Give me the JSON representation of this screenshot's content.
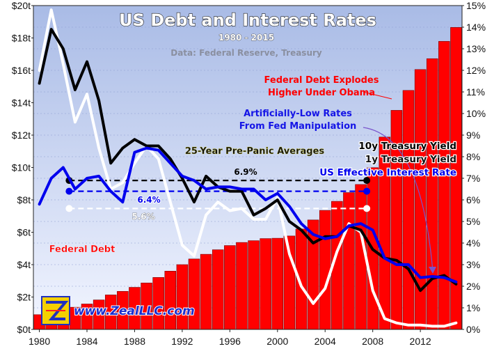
{
  "chart": {
    "title": "US Debt and Interest Rates",
    "subtitle": "1980 - 2015",
    "source": "Data: Federal Reserve, Treasury",
    "brand": "www.ZealLLC.com",
    "annotations": {
      "debt_explodes_line1": "Federal Debt Explodes",
      "debt_explodes_line2": "Higher Under Obama",
      "low_rates_line1": "Artificially-Low Rates",
      "low_rates_line2": "From Fed Manipulation",
      "averages_title": "25-Year Pre-Panic Averages",
      "federal_debt_label": "Federal Debt"
    },
    "legend": {
      "y10": "10y Treasury Yield",
      "y1": "1y Treasury Yield",
      "eff": "US Effective Interest Rate"
    },
    "colors": {
      "debt_bar": "#ff0000",
      "y10": "#000000",
      "y1": "#ffffff",
      "eff": "#0000ee",
      "red_text": "#ff0000",
      "blue_text": "#1515e6"
    }
  },
  "chart_data": {
    "type": "bar+line",
    "title": "US Debt and Interest Rates",
    "subtitle": "1980 - 2015",
    "x_ticks": [
      "1980",
      "1984",
      "1988",
      "1992",
      "1996",
      "2000",
      "2004",
      "2008",
      "2012"
    ],
    "left_axis": {
      "ylim": [
        0,
        20
      ],
      "ticks": [
        "$0t",
        "$2t",
        "$4t",
        "$6t",
        "$8t",
        "$10t",
        "$12t",
        "$14t",
        "$16t",
        "$18t",
        "$20t"
      ]
    },
    "right_axis": {
      "ylim": [
        0,
        15
      ],
      "ticks": [
        "0%",
        "1%",
        "2%",
        "3%",
        "4%",
        "5%",
        "6%",
        "7%",
        "8%",
        "9%",
        "10%",
        "11%",
        "12%",
        "13%",
        "14%",
        "15%"
      ]
    },
    "years": [
      1980,
      1981,
      1982,
      1983,
      1984,
      1985,
      1986,
      1987,
      1988,
      1989,
      1990,
      1991,
      1992,
      1993,
      1994,
      1995,
      1996,
      1997,
      1998,
      1999,
      2000,
      2001,
      2002,
      2003,
      2004,
      2005,
      2006,
      2007,
      2008,
      2009,
      2010,
      2011,
      2012,
      2013,
      2014,
      2015
    ],
    "series": [
      {
        "name": "Federal Debt",
        "axis": "left",
        "unit": "$t",
        "values": [
          0.91,
          1.0,
          1.14,
          1.37,
          1.57,
          1.82,
          2.13,
          2.35,
          2.6,
          2.87,
          3.21,
          3.6,
          4.0,
          4.35,
          4.64,
          4.92,
          5.18,
          5.37,
          5.48,
          5.61,
          5.63,
          5.77,
          6.2,
          6.76,
          7.35,
          7.91,
          8.45,
          8.95,
          9.99,
          11.88,
          13.53,
          14.76,
          16.05,
          16.72,
          17.79,
          18.65
        ]
      },
      {
        "name": "10y Treasury Yield",
        "axis": "right",
        "unit": "%",
        "values": [
          11.4,
          13.9,
          13.0,
          11.1,
          12.4,
          10.6,
          7.7,
          8.4,
          8.8,
          8.5,
          8.5,
          7.9,
          7.0,
          5.9,
          7.1,
          6.6,
          6.4,
          6.4,
          5.3,
          5.6,
          6.0,
          5.0,
          4.6,
          4.0,
          4.3,
          4.3,
          4.8,
          4.6,
          3.7,
          3.3,
          3.2,
          2.8,
          1.8,
          2.35,
          2.5,
          2.1
        ]
      },
      {
        "name": "1y Treasury Yield",
        "axis": "right",
        "unit": "%",
        "values": [
          12.0,
          14.8,
          12.3,
          9.6,
          10.9,
          8.4,
          6.5,
          6.8,
          7.7,
          8.5,
          7.9,
          5.9,
          3.9,
          3.4,
          5.3,
          5.9,
          5.5,
          5.6,
          5.1,
          5.1,
          6.1,
          3.5,
          2.0,
          1.2,
          1.9,
          3.6,
          4.9,
          4.5,
          1.8,
          0.5,
          0.3,
          0.2,
          0.2,
          0.15,
          0.15,
          0.3
        ]
      },
      {
        "name": "US Effective Interest Rate",
        "axis": "right",
        "unit": "%",
        "values": [
          5.8,
          7.0,
          7.5,
          6.5,
          7.0,
          7.1,
          6.4,
          5.9,
          8.2,
          8.4,
          8.3,
          7.7,
          7.1,
          6.9,
          6.5,
          6.6,
          6.6,
          6.5,
          6.5,
          6.0,
          6.3,
          5.7,
          4.9,
          4.4,
          4.2,
          4.3,
          4.8,
          4.9,
          4.6,
          3.3,
          3.0,
          3.0,
          2.4,
          2.45,
          2.4,
          2.2
        ]
      }
    ],
    "averages": [
      {
        "series": "10y Treasury Yield",
        "label": "6.9%",
        "value": 6.9
      },
      {
        "series": "US Effective Interest Rate",
        "label": "6.4%",
        "value": 6.4
      },
      {
        "series": "1y Treasury Yield",
        "label": "5.6%",
        "value": 5.6
      }
    ],
    "averages_span": [
      1982.5,
      2007.5
    ],
    "averages_title": "25-Year Pre-Panic Averages"
  }
}
